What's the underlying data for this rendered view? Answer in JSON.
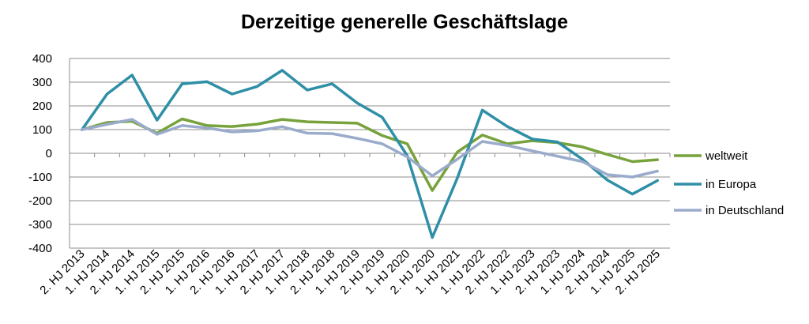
{
  "chart_data": {
    "type": "line",
    "title": "Derzeitige generelle Geschäftslage",
    "xlabel": "",
    "ylabel": "",
    "ylim": [
      -400,
      400
    ],
    "yticks": [
      400,
      300,
      200,
      100,
      0,
      -100,
      -200,
      -300,
      -400
    ],
    "grid": true,
    "legend_position": "right",
    "categories": [
      "2. HJ 2013",
      "1. HJ 2014",
      "2. HJ 2014",
      "1. HJ 2015",
      "2. HJ 2015",
      "1. HJ 2016",
      "2. HJ 2016",
      "1. HJ 2017",
      "2. HJ 2017",
      "1. HJ 2018",
      "2. HJ 2018",
      "1. HJ 2019",
      "2. HJ 2019",
      "1. HJ 2020",
      "2. HJ 2020",
      "1. HJ 2021",
      "1. HJ 2022",
      "2. HJ 2022",
      "1. HJ 2023",
      "2. HJ 2023",
      "1. HJ 2024",
      "2. HJ 2024",
      "1. HJ 2025",
      "2. HJ 2025"
    ],
    "series": [
      {
        "name": "weltweit",
        "color": "#77a23c",
        "values": [
          100,
          130,
          135,
          85,
          145,
          117,
          113,
          123,
          143,
          133,
          130,
          127,
          75,
          40,
          -157,
          5,
          77,
          40,
          53,
          45,
          27,
          -5,
          -35,
          -27
        ]
      },
      {
        "name": "in Europa",
        "color": "#2e8fa6",
        "values": [
          100,
          250,
          330,
          140,
          293,
          302,
          250,
          282,
          350,
          267,
          293,
          212,
          152,
          -10,
          -355,
          -105,
          182,
          113,
          60,
          48,
          -25,
          -113,
          -172,
          -115
        ]
      },
      {
        "name": "in Deutschland",
        "color": "#9aabcb",
        "values": [
          100,
          122,
          143,
          80,
          117,
          107,
          90,
          95,
          112,
          85,
          83,
          63,
          40,
          -15,
          -95,
          -25,
          50,
          33,
          10,
          -12,
          -35,
          -90,
          -100,
          -75
        ]
      }
    ]
  }
}
